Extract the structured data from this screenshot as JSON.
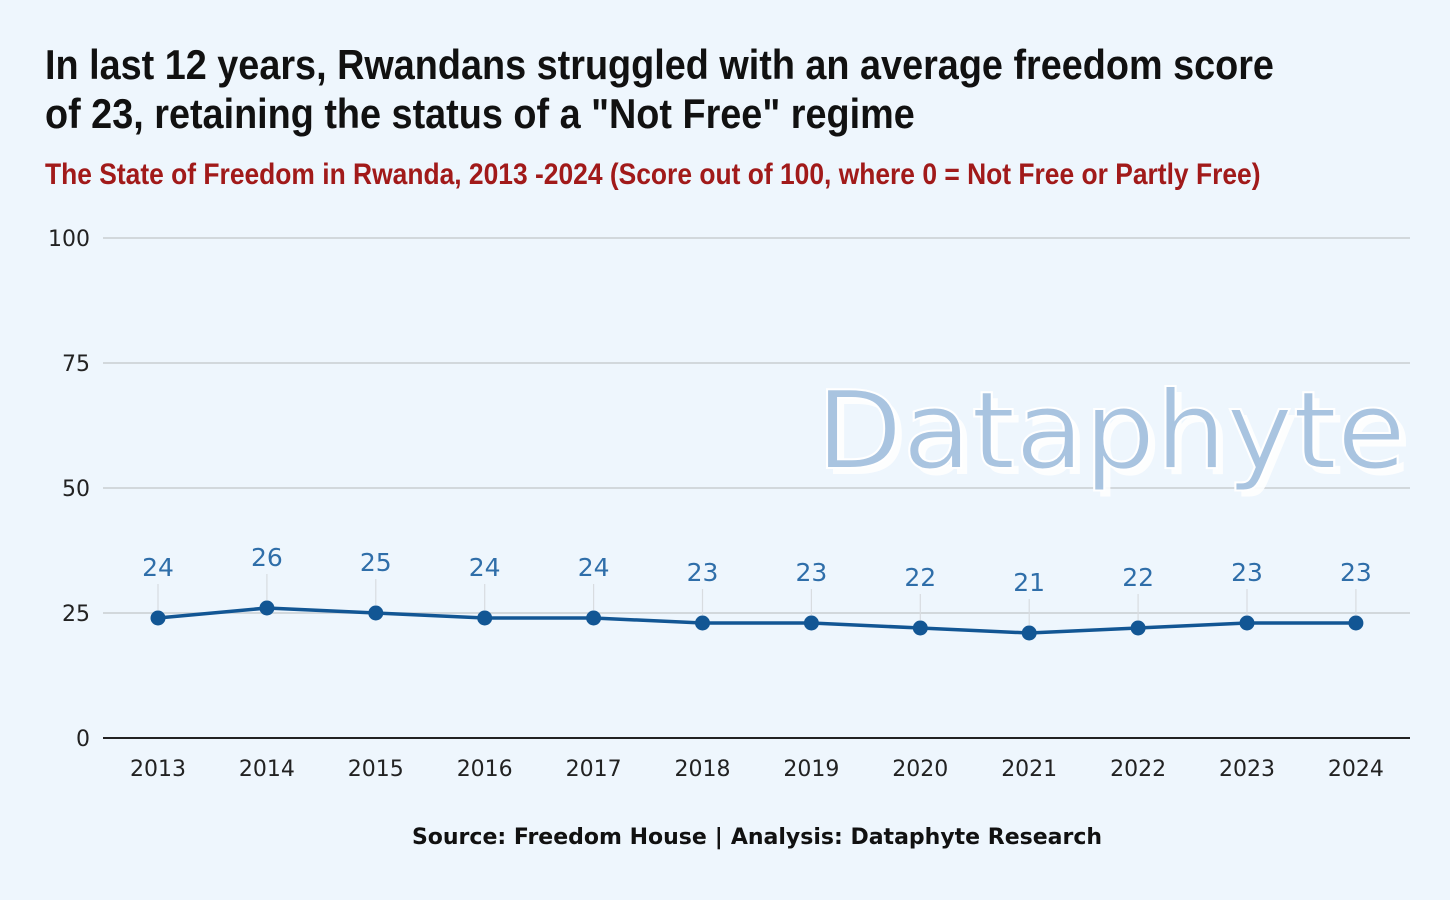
{
  "title": "In last 12 years, Rwandans struggled with an average freedom score of 23, retaining the status of a \"Not Free\" regime",
  "subtitle": "The State of Freedom in Rwanda, 2013 -2024 (Score out of 100, where 0 = Not Free or Partly Free)",
  "watermark": "Dataphyte",
  "source": {
    "source_label": "Source: Freedom House",
    "separator": "|",
    "analysis_label": "Analysis: Dataphyte Research"
  },
  "colors": {
    "background": "#eef6fd",
    "title": "#111111",
    "subtitle": "#a11a1a",
    "series_line": "#125694",
    "data_label": "#2f6ea9",
    "gridline": "#c9cdd2",
    "axis": "#222222",
    "watermark": "#a9c4e0"
  },
  "chart_data": {
    "type": "line",
    "x": [
      "2013",
      "2014",
      "2015",
      "2016",
      "2017",
      "2018",
      "2019",
      "2020",
      "2021",
      "2022",
      "2023",
      "2024"
    ],
    "series": [
      {
        "values": [
          24,
          26,
          25,
          24,
          24,
          23,
          23,
          22,
          21,
          22,
          23,
          23
        ]
      }
    ],
    "yticks": [
      0,
      25,
      50,
      75,
      100
    ],
    "ylim": [
      0,
      100
    ],
    "grid": true,
    "data_labels": true,
    "legend": "none"
  }
}
